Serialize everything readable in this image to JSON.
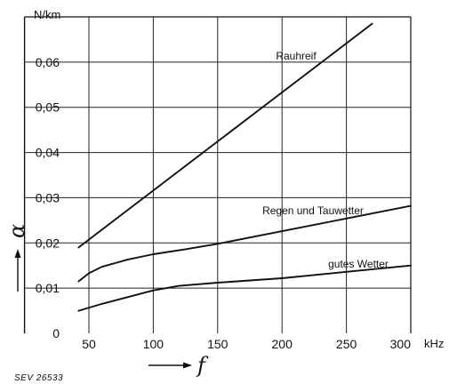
{
  "chart_data": {
    "type": "line",
    "x_unit": "kHz",
    "y_unit": "N/km",
    "xlabel": "f",
    "ylabel": "α",
    "x_ticks": [
      "50",
      "100",
      "150",
      "200",
      "250",
      "300"
    ],
    "y_ticks": [
      "0",
      "0,01",
      "0,02",
      "0,03",
      "0,04",
      "0,05",
      "0,06"
    ],
    "xlim": [
      0,
      300
    ],
    "ylim": [
      0,
      0.07
    ],
    "grid": true,
    "series": [
      {
        "name": "Rauhreif",
        "color": "#111111",
        "x": [
          42,
          270
        ],
        "y": [
          0.019,
          0.0685
        ]
      },
      {
        "name": "Regen und Tauwetter",
        "color": "#111111",
        "x": [
          42,
          50,
          60,
          80,
          100,
          125,
          150,
          200,
          250,
          300
        ],
        "y": [
          0.0115,
          0.0133,
          0.0147,
          0.0163,
          0.0175,
          0.0186,
          0.0198,
          0.0226,
          0.0254,
          0.0282
        ]
      },
      {
        "name": "gutes Wetter",
        "color": "#111111",
        "x": [
          42,
          60,
          80,
          100,
          120,
          150,
          200,
          250,
          300
        ],
        "y": [
          0.005,
          0.0065,
          0.008,
          0.0095,
          0.0105,
          0.0112,
          0.0122,
          0.0136,
          0.015
        ]
      }
    ]
  },
  "footer": {
    "reference": "SEV 26533"
  }
}
